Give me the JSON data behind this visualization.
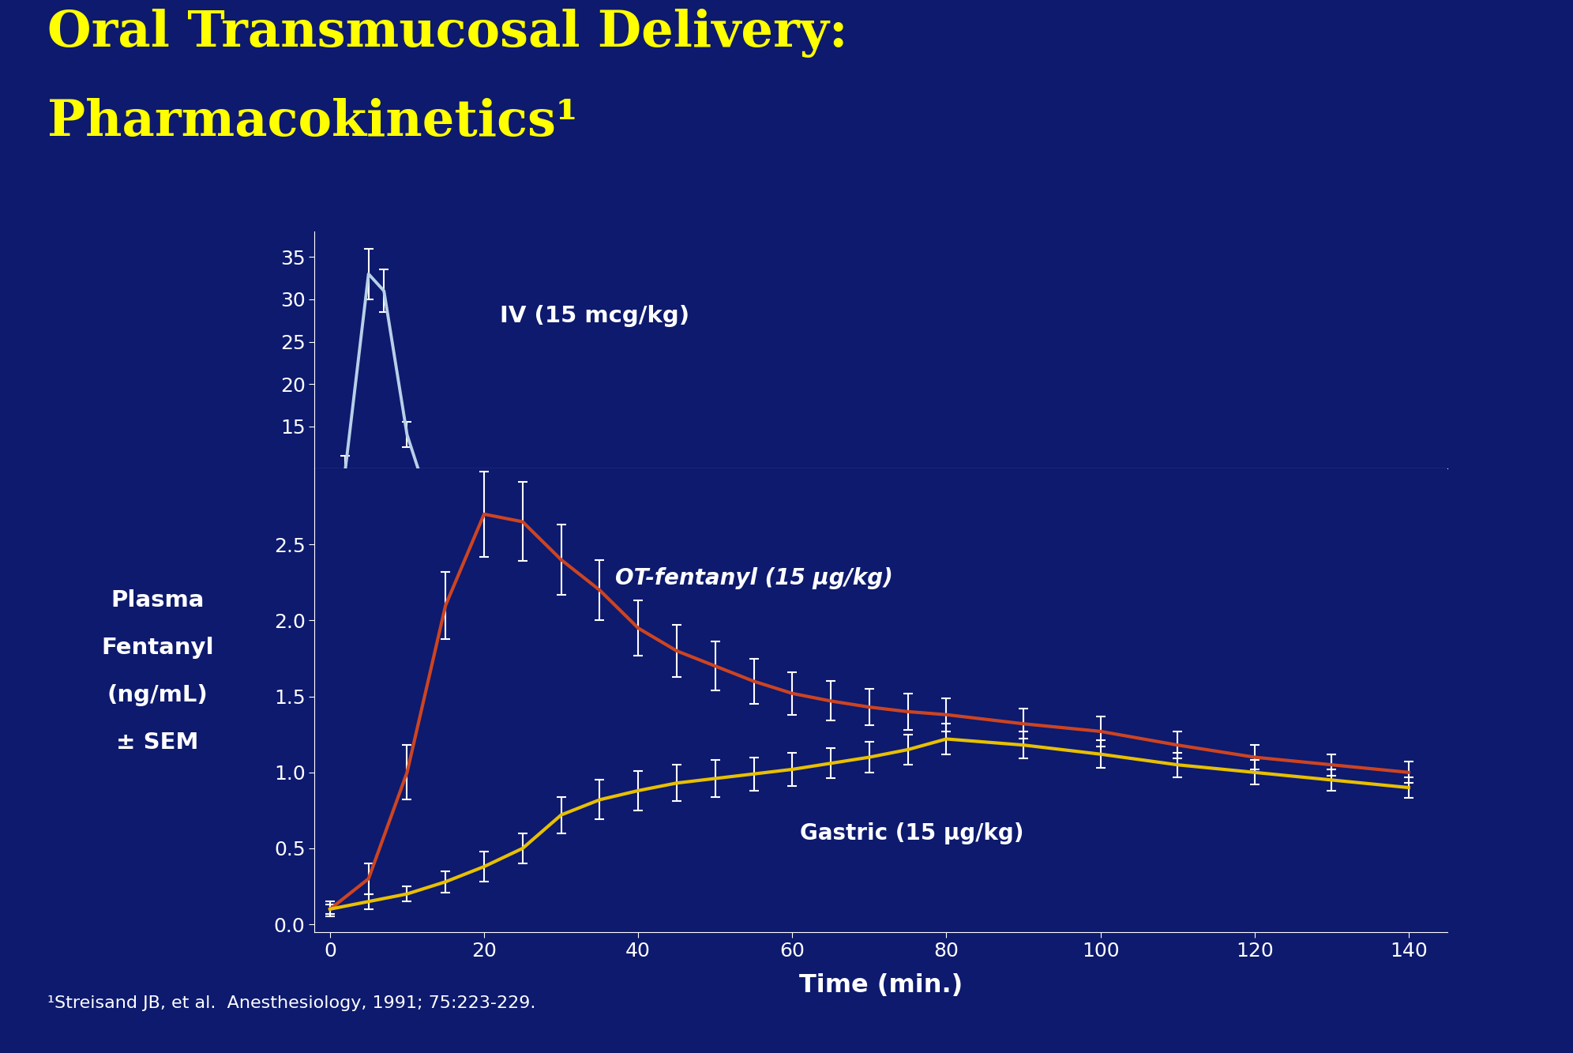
{
  "title_line1": "Oral Transmucosal Delivery:",
  "title_line2": "Pharmacokinetics¹",
  "title_color": "#FFFF00",
  "bg_color": "#0d1a6e",
  "orange_bar_color": "#b85020",
  "xlabel": "Time (min.)",
  "ylabel_line1": "Plasma",
  "ylabel_line2": "Fentanyl",
  "ylabel_line3": "(ng/mL)",
  "ylabel_line4": "± SEM",
  "footnote": "¹Streisand JB, et al.  Anesthesiology, 1991; 75:223-229.",
  "iv_label": "IV (15 mcg/kg)",
  "ot_label": "OT-fentanyl (15 μg/kg)",
  "gastric_label": "Gastric (15 μg/kg)",
  "iv_color": "#b8d0e8",
  "ot_color": "#cc4422",
  "gastric_color": "#e8c000",
  "iv_time": [
    0,
    2,
    5,
    7,
    10,
    15
  ],
  "iv_values": [
    0,
    10,
    33,
    31,
    14,
    0
  ],
  "iv_err": [
    0,
    1.5,
    3,
    2.5,
    1.5,
    0
  ],
  "ot_time": [
    0,
    5,
    10,
    15,
    20,
    25,
    30,
    35,
    40,
    45,
    50,
    55,
    60,
    65,
    70,
    75,
    80,
    90,
    100,
    110,
    120,
    130,
    140
  ],
  "ot_values": [
    0.1,
    0.3,
    1.0,
    2.1,
    2.7,
    2.65,
    2.4,
    2.2,
    1.95,
    1.8,
    1.7,
    1.6,
    1.52,
    1.47,
    1.43,
    1.4,
    1.38,
    1.32,
    1.27,
    1.18,
    1.1,
    1.05,
    1.0
  ],
  "ot_err": [
    0.05,
    0.1,
    0.18,
    0.22,
    0.28,
    0.26,
    0.23,
    0.2,
    0.18,
    0.17,
    0.16,
    0.15,
    0.14,
    0.13,
    0.12,
    0.12,
    0.11,
    0.1,
    0.1,
    0.09,
    0.08,
    0.07,
    0.07
  ],
  "gastric_time": [
    0,
    5,
    10,
    15,
    20,
    25,
    30,
    35,
    40,
    45,
    50,
    55,
    60,
    65,
    70,
    75,
    80,
    90,
    100,
    110,
    120,
    130,
    140
  ],
  "gastric_values": [
    0.1,
    0.15,
    0.2,
    0.28,
    0.38,
    0.5,
    0.72,
    0.82,
    0.88,
    0.93,
    0.96,
    0.99,
    1.02,
    1.06,
    1.1,
    1.15,
    1.22,
    1.18,
    1.12,
    1.05,
    1.0,
    0.95,
    0.9
  ],
  "gastric_err": [
    0.03,
    0.05,
    0.05,
    0.07,
    0.1,
    0.1,
    0.12,
    0.13,
    0.13,
    0.12,
    0.12,
    0.11,
    0.11,
    0.1,
    0.1,
    0.1,
    0.1,
    0.09,
    0.09,
    0.08,
    0.08,
    0.07,
    0.07
  ],
  "xticks": [
    0,
    20,
    40,
    60,
    80,
    100,
    120,
    140
  ],
  "yticks_lower": [
    0,
    0.5,
    1.0,
    1.5,
    2.0,
    2.5
  ],
  "yticks_upper": [
    15,
    20,
    25,
    30,
    35
  ],
  "xlim": [
    -2,
    145
  ],
  "ylim_lower": [
    -0.05,
    3.0
  ],
  "ylim_upper": [
    10,
    38
  ]
}
